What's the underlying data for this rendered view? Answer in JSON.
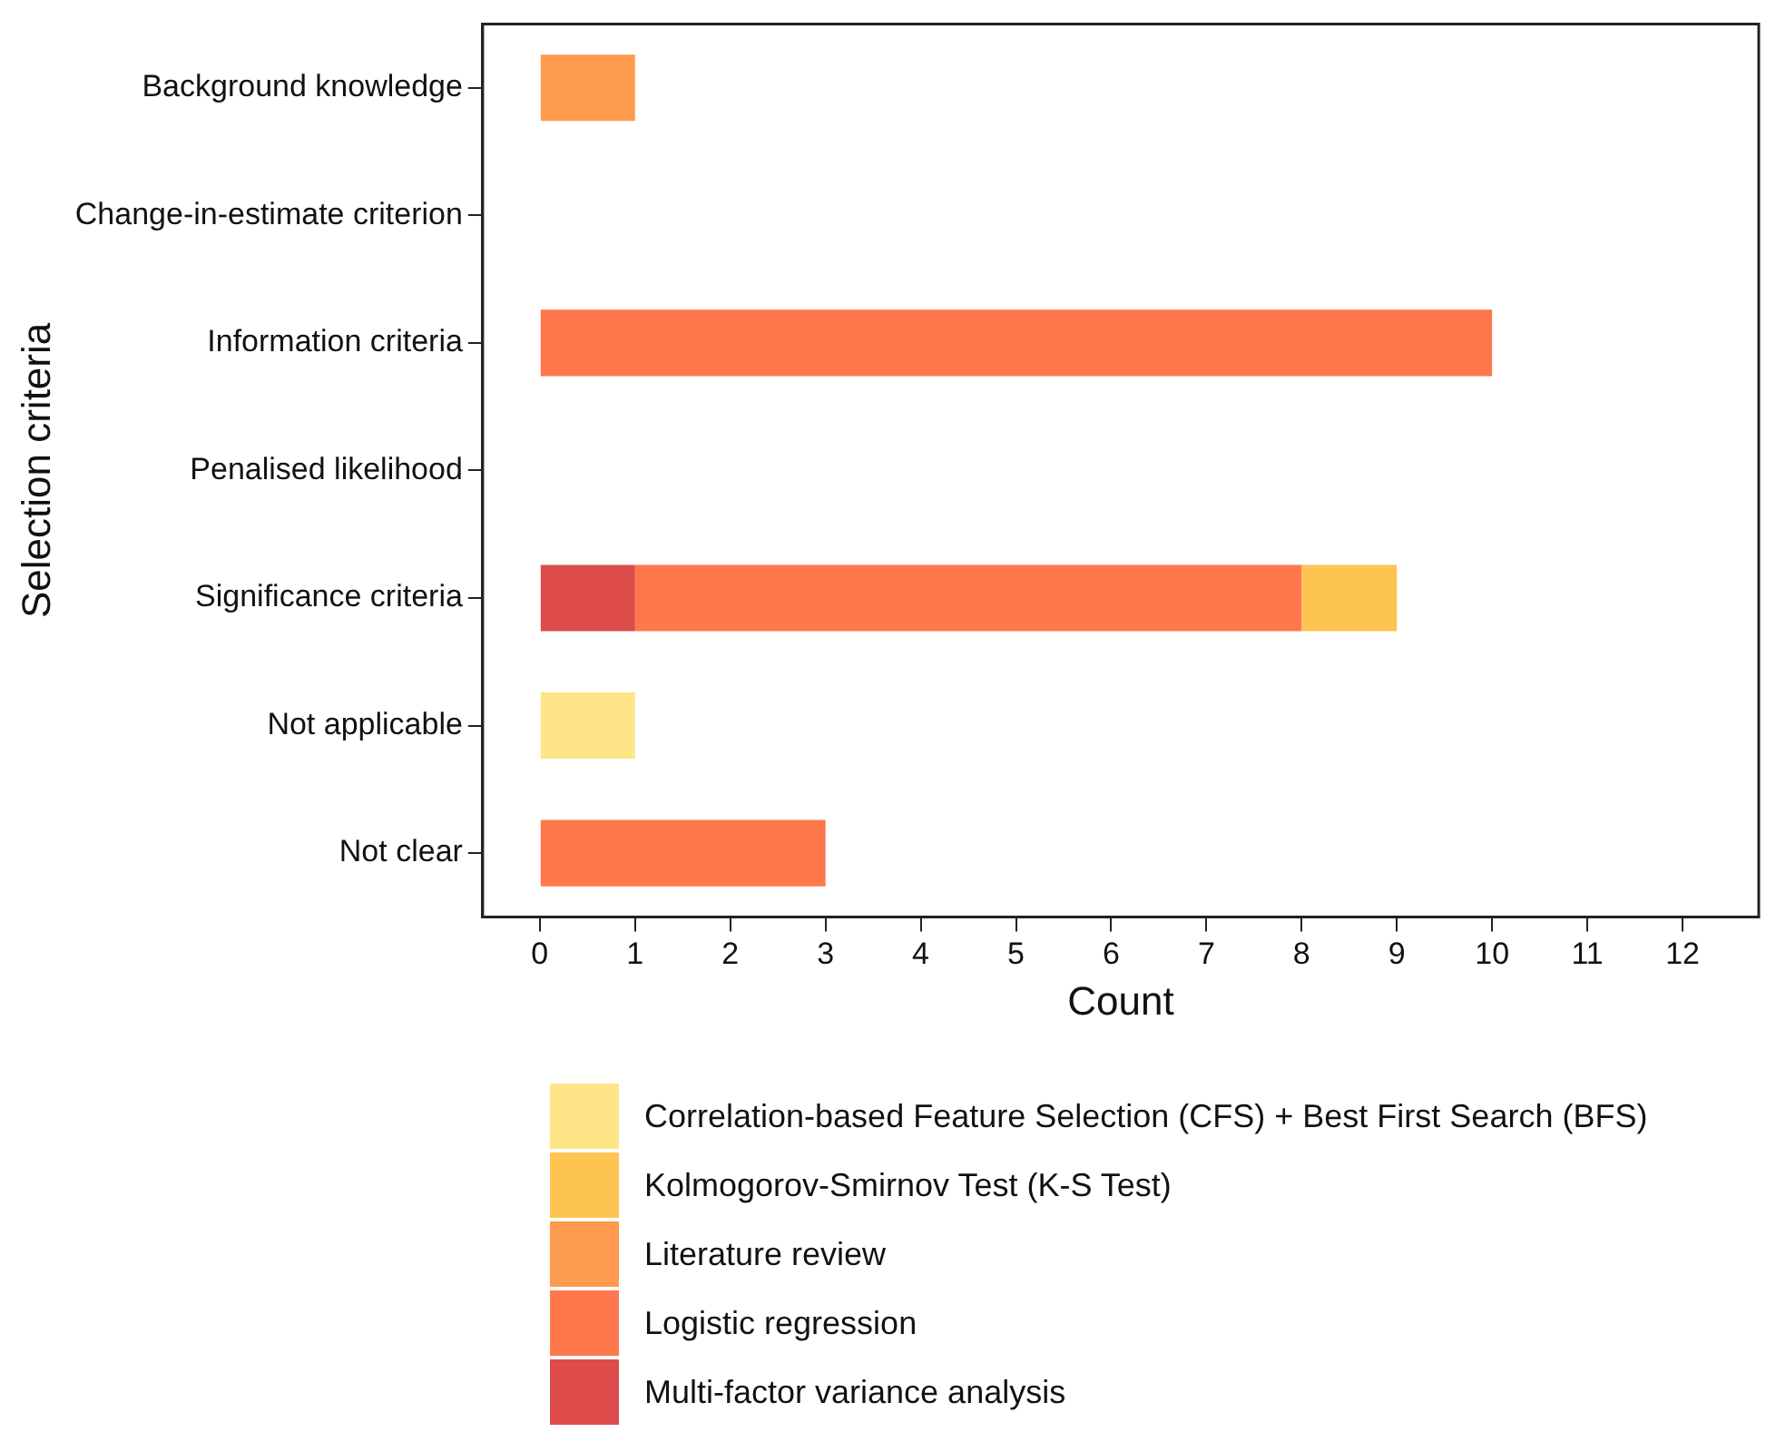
{
  "chart_data": {
    "type": "bar",
    "orientation": "horizontal",
    "stacked": true,
    "categories": [
      "Background knowledge",
      "Change-in-estimate criterion",
      "Information criteria",
      "Penalised likelihood",
      "Significance criteria",
      "Not applicable",
      "Not clear"
    ],
    "series": [
      {
        "name": "Multi-factor variance analysis",
        "color": "#de4b4b",
        "values": [
          0,
          0,
          0,
          0,
          1,
          0,
          0
        ]
      },
      {
        "name": "Logistic regression",
        "color": "#fe774d",
        "values": [
          0,
          0,
          10,
          0,
          7,
          0,
          3
        ]
      },
      {
        "name": "Literature review",
        "color": "#fe9a4d",
        "values": [
          1,
          0,
          0,
          0,
          0,
          0,
          0
        ]
      },
      {
        "name": "Kolmogorov-Smirnov Test (K-S Test)",
        "color": "#fec452",
        "values": [
          0,
          0,
          0,
          0,
          1,
          0,
          0
        ]
      },
      {
        "name": "Correlation-based Feature Selection (CFS) + Best First Search (BFS)",
        "color": "#fee587",
        "values": [
          0,
          0,
          0,
          0,
          0,
          1,
          0
        ]
      }
    ],
    "xlabel": "Count",
    "ylabel": "Selection criteria",
    "xlim": [
      -0.6,
      12.8
    ],
    "xticks": [
      0,
      1,
      2,
      3,
      4,
      5,
      6,
      7,
      8,
      9,
      10,
      11,
      12
    ],
    "grid": false,
    "legend": "bottom"
  }
}
